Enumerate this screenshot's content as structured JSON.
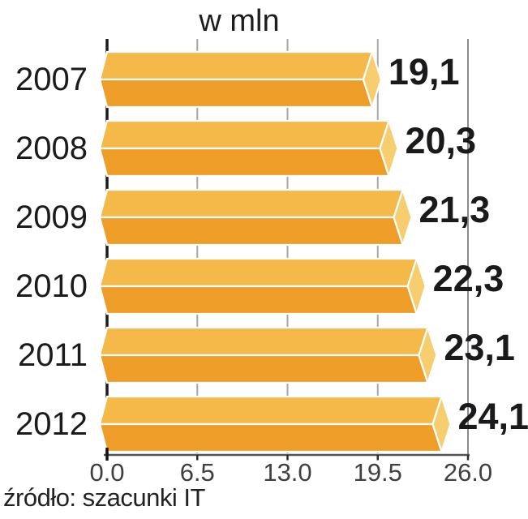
{
  "chart_data": {
    "type": "bar",
    "orientation": "horizontal",
    "title": "w mln",
    "categories": [
      "2007",
      "2008",
      "2009",
      "2010",
      "2011",
      "2012"
    ],
    "values": [
      19.1,
      20.3,
      21.3,
      22.3,
      23.1,
      24.1
    ],
    "value_labels": [
      "19,1",
      "20,3",
      "21,3",
      "22,3",
      "23,1",
      "24,1"
    ],
    "x_ticks": [
      "0.0",
      "6.5",
      "13.0",
      "19.5",
      "26.0"
    ],
    "x_tick_values": [
      0,
      6.5,
      13,
      19.5,
      26
    ],
    "xlim": [
      0,
      26
    ],
    "xlabel": "",
    "ylabel": "",
    "grid": "vertical-ticks",
    "legend": "none",
    "source": "źródło: szacunki IT",
    "colors": {
      "bar_top": "#F5B94A",
      "bar_bottom": "#EE9D29",
      "bar_cap": "#F7CE6F",
      "bar_outline": "#FFFFFF",
      "grid_line": "#A6A6A8",
      "right_frame": "#8A8B8D",
      "left_frame": "#1C1C1E",
      "axis_line": "#515254",
      "tick_stub": "#2E2E30",
      "label_text": "#1A1A1C"
    }
  }
}
